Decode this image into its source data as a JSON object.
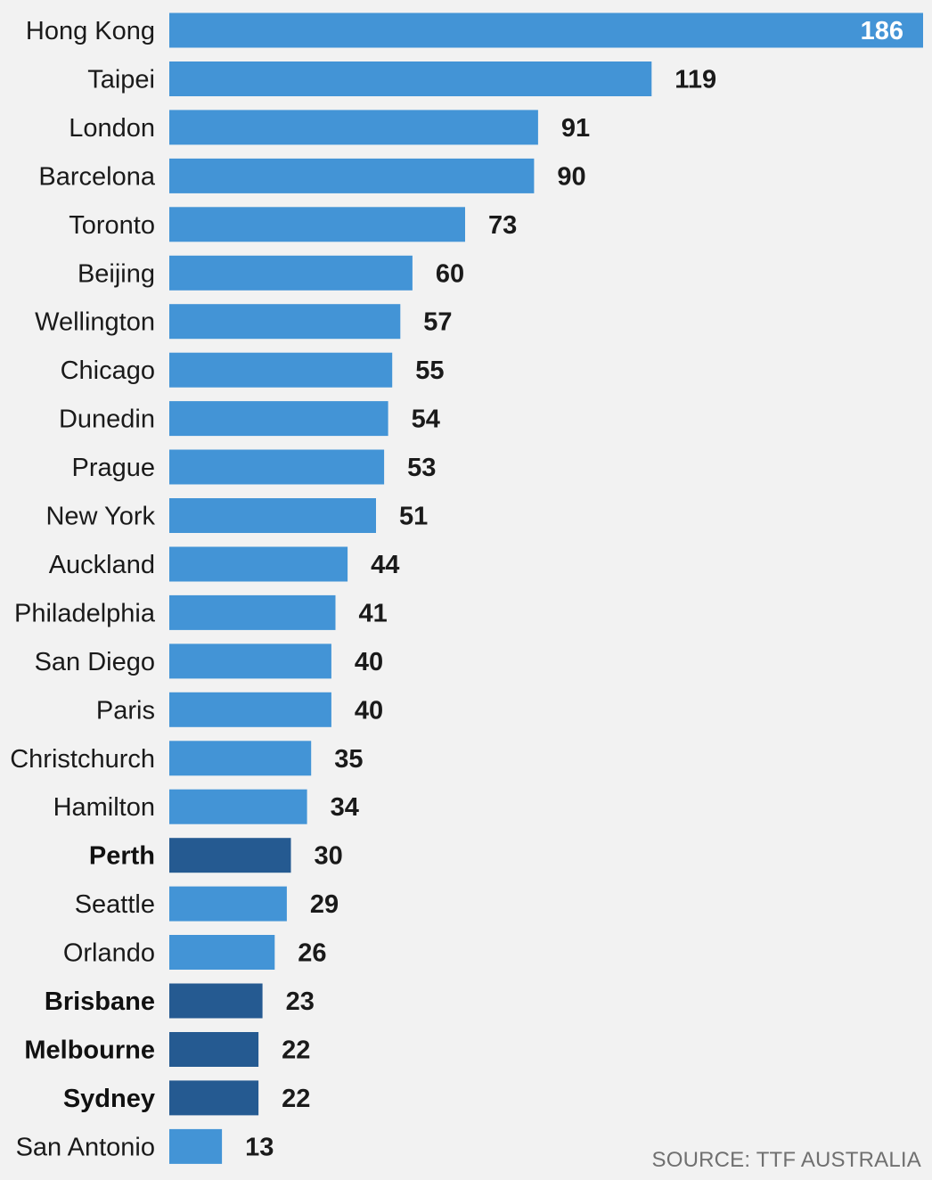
{
  "chart_data": {
    "type": "bar",
    "orientation": "horizontal",
    "categories": [
      "Hong Kong",
      "Taipei",
      "London",
      "Barcelona",
      "Toronto",
      "Beijing",
      "Wellington",
      "Chicago",
      "Dunedin",
      "Prague",
      "New York",
      "Auckland",
      "Philadelphia",
      "San Diego",
      "Paris",
      "Christchurch",
      "Hamilton",
      "Perth",
      "Seattle",
      "Orlando",
      "Brisbane",
      "Melbourne",
      "Sydney",
      "San Antonio"
    ],
    "values": [
      186,
      119,
      91,
      90,
      73,
      60,
      57,
      55,
      54,
      53,
      51,
      44,
      41,
      40,
      40,
      35,
      34,
      30,
      29,
      26,
      23,
      22,
      22,
      13
    ],
    "highlighted": [
      "Perth",
      "Brisbane",
      "Melbourne",
      "Sydney"
    ],
    "colors": {
      "bar": "#4394d6",
      "highlight_bar": "#255a91",
      "value_inside": "#ffffff",
      "text": "#1a1a1a"
    },
    "xlim": [
      0,
      186
    ],
    "grid": false,
    "legend": "none",
    "source": "SOURCE: TTF AUSTRALIA"
  }
}
